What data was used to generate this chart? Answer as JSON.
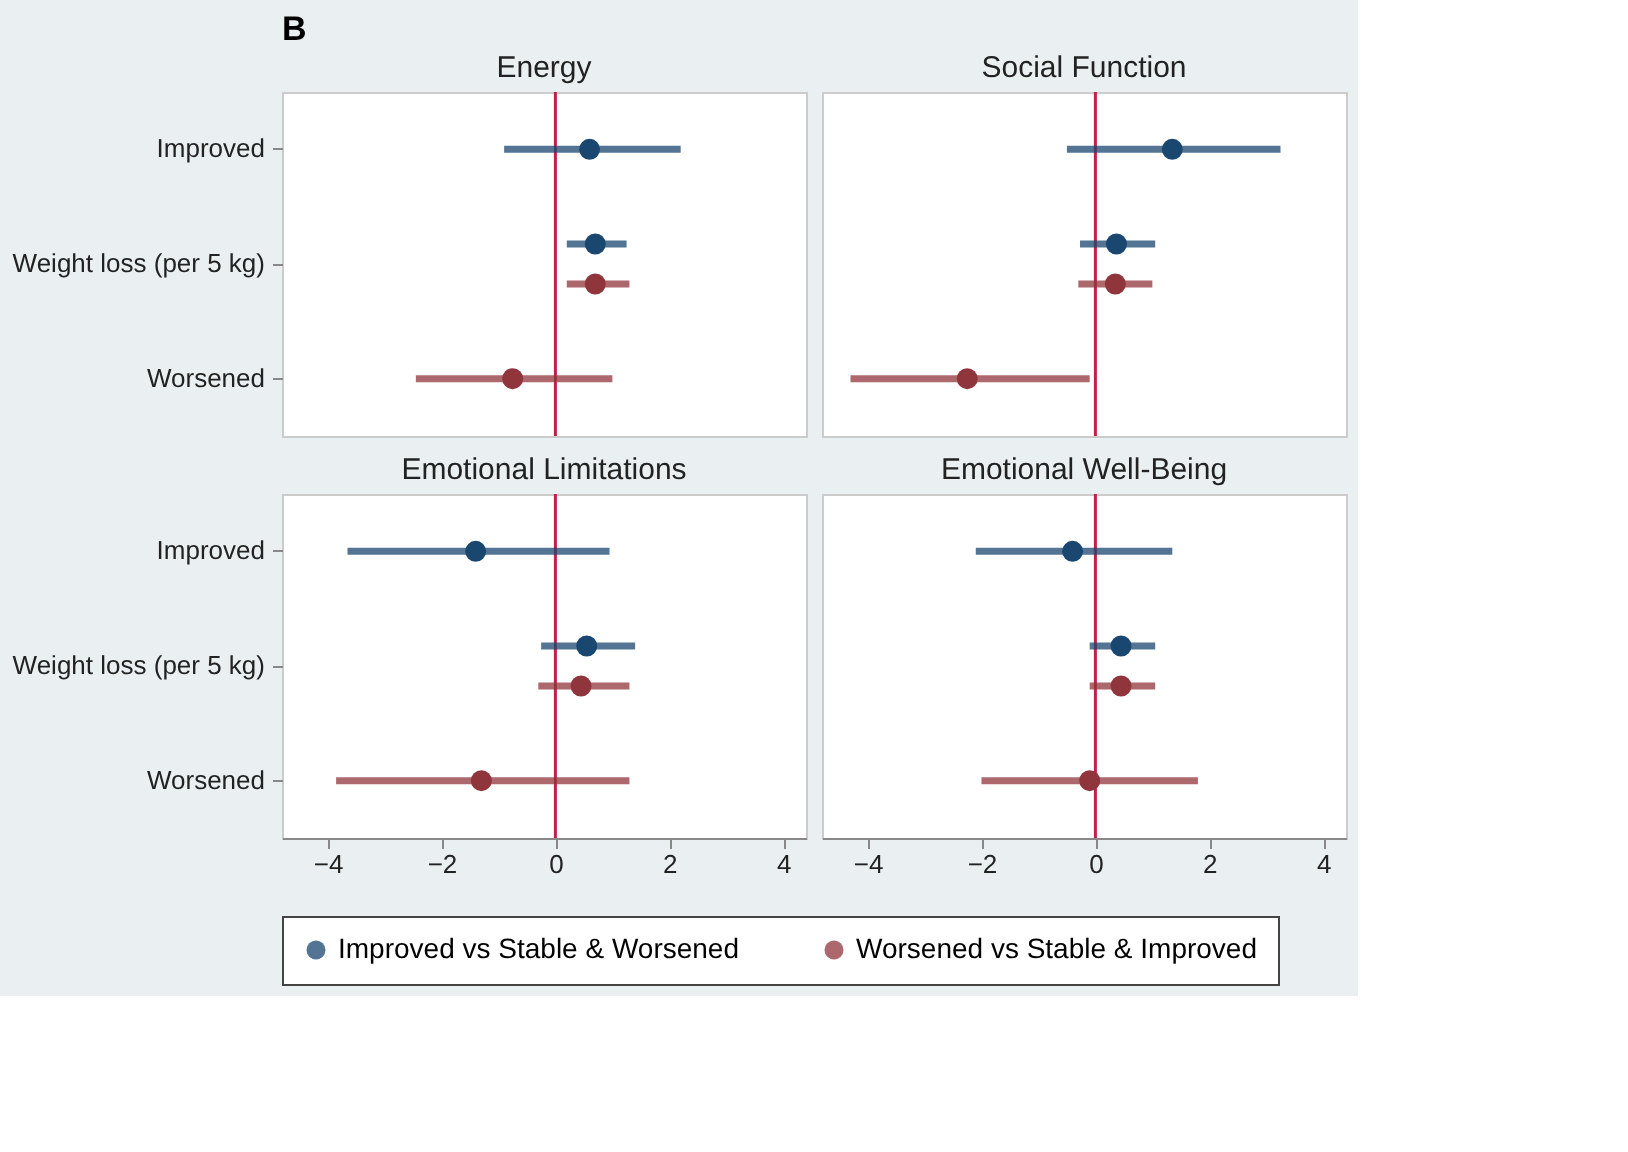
{
  "chart_data": [
    {
      "type": "scatter",
      "orientation": "horizontal",
      "title": "Energy",
      "annotations": [
        "B"
      ],
      "categories": [
        "Improved",
        "Weight loss (per 5 kg)",
        "Worsened"
      ],
      "series": [
        {
          "name": "Improved vs Stable & Worsened",
          "color": "#1a476f",
          "values": [
            0.6,
            0.7,
            null
          ],
          "errors": [
            [
              -0.9,
              2.2
            ],
            [
              0.2,
              1.25
            ],
            null
          ]
        },
        {
          "name": "Worsened vs Stable & Improved",
          "color": "#90353b",
          "values": [
            null,
            0.7,
            -0.75
          ],
          "errors": [
            null,
            [
              0.2,
              1.3
            ],
            [
              -2.45,
              1.0
            ]
          ]
        }
      ],
      "xlim": [
        -4.8,
        4.4
      ],
      "xticks": [
        -4,
        -2,
        0,
        2,
        4
      ],
      "ref_lines": [
        {
          "axis": "x",
          "value": 0,
          "color": "#c1204a"
        }
      ],
      "marker": "circle",
      "legend": "bottom",
      "tick_labels": "y"
    },
    {
      "type": "scatter",
      "orientation": "horizontal",
      "title": "Social Function",
      "categories": [
        "Improved",
        "Weight loss (per 5 kg)",
        "Worsened"
      ],
      "series": [
        {
          "name": "Improved vs Stable & Worsened",
          "color": "#1a476f",
          "values": [
            1.35,
            0.37,
            null
          ],
          "errors": [
            [
              -0.5,
              3.25
            ],
            [
              -0.27,
              1.05
            ],
            null
          ]
        },
        {
          "name": "Worsened vs Stable & Improved",
          "color": "#90353b",
          "values": [
            null,
            0.35,
            -2.25
          ],
          "errors": [
            null,
            [
              -0.3,
              1.0
            ],
            [
              -4.3,
              -0.1
            ]
          ]
        }
      ],
      "xlim": [
        -4.8,
        4.4
      ],
      "xticks": [
        -4,
        -2,
        0,
        2,
        4
      ],
      "ref_lines": [
        {
          "axis": "x",
          "value": 0,
          "color": "#c1204a"
        }
      ],
      "marker": "circle",
      "legend": "bottom",
      "tick_labels": false
    },
    {
      "type": "scatter",
      "orientation": "horizontal",
      "title": "Emotional Limitations",
      "categories": [
        "Improved",
        "Weight loss (per 5 kg)",
        "Worsened"
      ],
      "series": [
        {
          "name": "Improved vs Stable & Worsened",
          "color": "#1a476f",
          "values": [
            -1.4,
            0.55,
            null
          ],
          "errors": [
            [
              -3.65,
              0.95
            ],
            [
              -0.25,
              1.4
            ],
            null
          ]
        },
        {
          "name": "Worsened vs Stable & Improved",
          "color": "#90353b",
          "values": [
            null,
            0.45,
            -1.3
          ],
          "errors": [
            null,
            [
              -0.3,
              1.3
            ],
            [
              -3.85,
              1.3
            ]
          ]
        }
      ],
      "xlim": [
        -4.8,
        4.4
      ],
      "xticks": [
        -4,
        -2,
        0,
        2,
        4
      ],
      "ref_lines": [
        {
          "axis": "x",
          "value": 0,
          "color": "#c1204a"
        }
      ],
      "marker": "circle",
      "legend": "bottom"
    },
    {
      "type": "scatter",
      "orientation": "horizontal",
      "title": "Emotional Well-Being",
      "categories": [
        "Improved",
        "Weight loss (per 5 kg)",
        "Worsened"
      ],
      "series": [
        {
          "name": "Improved vs Stable & Worsened",
          "color": "#1a476f",
          "values": [
            -0.4,
            0.45,
            null
          ],
          "errors": [
            [
              -2.1,
              1.35
            ],
            [
              -0.1,
              1.05
            ],
            null
          ]
        },
        {
          "name": "Worsened vs Stable & Improved",
          "color": "#90353b",
          "values": [
            null,
            0.45,
            -0.1
          ],
          "errors": [
            null,
            [
              -0.1,
              1.05
            ],
            [
              -2.0,
              1.8
            ]
          ]
        }
      ],
      "xlim": [
        -4.8,
        4.4
      ],
      "xticks": [
        -4,
        -2,
        0,
        2,
        4
      ],
      "ref_lines": [
        {
          "axis": "x",
          "value": 0,
          "color": "#c1204a"
        }
      ],
      "marker": "circle",
      "legend": "bottom",
      "tick_labels": "x"
    }
  ]
}
